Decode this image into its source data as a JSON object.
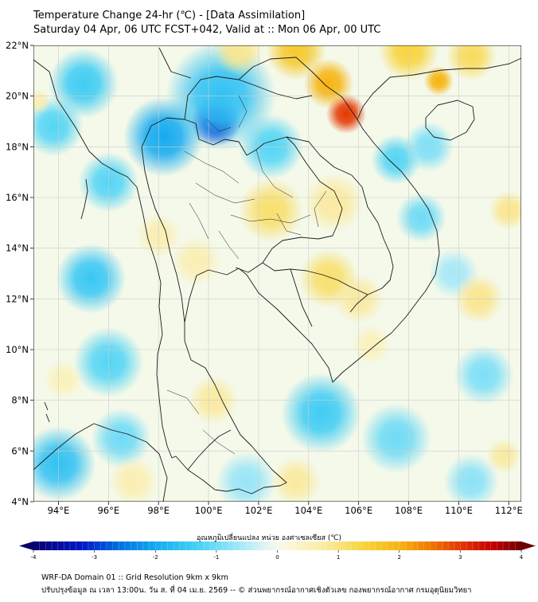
{
  "title": {
    "line1": "Temperature Change 24-hr (℃) - [Data Assimilation]",
    "line2": "Saturday 04 Apr, 06 UTC FCST+042, Valid at :: Mon 06 Apr, 00 UTC"
  },
  "map": {
    "lat_range": [
      4,
      22
    ],
    "lon_range": [
      93,
      112.5
    ],
    "lat_ticks": [
      "22°N",
      "20°N",
      "18°N",
      "16°N",
      "14°N",
      "12°N",
      "10°N",
      "8°N",
      "6°N",
      "4°N"
    ],
    "lon_ticks": [
      "94°E",
      "96°E",
      "98°E",
      "100°E",
      "102°E",
      "104°E",
      "106°E",
      "108°E",
      "110°E",
      "112°E"
    ],
    "background_color": "#f4f9ea",
    "anomalies": [
      {
        "lon": 100.3,
        "lat": 19.0,
        "value": -3.2,
        "spread": 1.0
      },
      {
        "lon": 98.2,
        "lat": 18.4,
        "value": -2.0,
        "spread": 1.6
      },
      {
        "lon": 100.5,
        "lat": 20.0,
        "value": -1.6,
        "spread": 2.2
      },
      {
        "lon": 102.5,
        "lat": 18.0,
        "value": -1.2,
        "spread": 1.3
      },
      {
        "lon": 95.0,
        "lat": 20.5,
        "value": -1.4,
        "spread": 1.4
      },
      {
        "lon": 93.8,
        "lat": 18.8,
        "value": -1.2,
        "spread": 1.2
      },
      {
        "lon": 96.0,
        "lat": 16.6,
        "value": -1.2,
        "spread": 1.2
      },
      {
        "lon": 95.3,
        "lat": 12.8,
        "value": -1.5,
        "spread": 1.4
      },
      {
        "lon": 96.0,
        "lat": 9.5,
        "value": -1.2,
        "spread": 1.4
      },
      {
        "lon": 94.0,
        "lat": 5.5,
        "value": -1.6,
        "spread": 1.5
      },
      {
        "lon": 96.5,
        "lat": 6.5,
        "value": -1.0,
        "spread": 1.2
      },
      {
        "lon": 107.5,
        "lat": 17.5,
        "value": -1.2,
        "spread": 1.0
      },
      {
        "lon": 108.5,
        "lat": 15.2,
        "value": -1.0,
        "spread": 1.0
      },
      {
        "lon": 108.8,
        "lat": 18.0,
        "value": -0.9,
        "spread": 1.0
      },
      {
        "lon": 109.8,
        "lat": 13.0,
        "value": -0.6,
        "spread": 1.0
      },
      {
        "lon": 104.5,
        "lat": 7.5,
        "value": -1.4,
        "spread": 1.6
      },
      {
        "lon": 107.5,
        "lat": 6.5,
        "value": -1.0,
        "spread": 1.4
      },
      {
        "lon": 111.0,
        "lat": 9.0,
        "value": -0.9,
        "spread": 1.2
      },
      {
        "lon": 110.5,
        "lat": 4.8,
        "value": -0.8,
        "spread": 1.1
      },
      {
        "lon": 101.5,
        "lat": 4.8,
        "value": -0.7,
        "spread": 1.2
      },
      {
        "lon": 105.5,
        "lat": 19.3,
        "value": 3.0,
        "spread": 0.8
      },
      {
        "lon": 104.8,
        "lat": 20.5,
        "value": 2.0,
        "spread": 1.0
      },
      {
        "lon": 103.5,
        "lat": 21.8,
        "value": 1.6,
        "spread": 1.2
      },
      {
        "lon": 108.0,
        "lat": 21.8,
        "value": 1.4,
        "spread": 1.2
      },
      {
        "lon": 109.2,
        "lat": 20.6,
        "value": 2.0,
        "spread": 0.6
      },
      {
        "lon": 110.5,
        "lat": 21.6,
        "value": 1.2,
        "spread": 1.0
      },
      {
        "lon": 101.2,
        "lat": 21.8,
        "value": 0.9,
        "spread": 1.0
      },
      {
        "lon": 102.5,
        "lat": 15.5,
        "value": 1.1,
        "spread": 1.3
      },
      {
        "lon": 105.0,
        "lat": 15.8,
        "value": 0.8,
        "spread": 1.2
      },
      {
        "lon": 104.8,
        "lat": 12.8,
        "value": 1.1,
        "spread": 1.2
      },
      {
        "lon": 106.0,
        "lat": 12.0,
        "value": 0.8,
        "spread": 1.0
      },
      {
        "lon": 99.5,
        "lat": 13.5,
        "value": 0.6,
        "spread": 1.0
      },
      {
        "lon": 110.8,
        "lat": 12.0,
        "value": 0.9,
        "spread": 1.0
      },
      {
        "lon": 112.0,
        "lat": 15.5,
        "value": 0.9,
        "spread": 0.8
      },
      {
        "lon": 100.2,
        "lat": 8.0,
        "value": 0.8,
        "spread": 1.0
      },
      {
        "lon": 103.5,
        "lat": 4.8,
        "value": 0.8,
        "spread": 1.0
      },
      {
        "lon": 97.0,
        "lat": 4.8,
        "value": 0.6,
        "spread": 1.0
      },
      {
        "lon": 111.8,
        "lat": 5.8,
        "value": 0.8,
        "spread": 0.7
      },
      {
        "lon": 98.0,
        "lat": 14.5,
        "value": 0.6,
        "spread": 0.9
      },
      {
        "lon": 94.2,
        "lat": 8.8,
        "value": 0.5,
        "spread": 0.8
      },
      {
        "lon": 106.5,
        "lat": 10.2,
        "value": 0.5,
        "spread": 0.8
      },
      {
        "lon": 93.2,
        "lat": 19.8,
        "value": 0.6,
        "spread": 0.5
      }
    ]
  },
  "colorbar": {
    "label": "อุณหภูมิเปลี่ยนแปลง หน่วย องศาเซลเซียส (℃)",
    "min": -4,
    "max": 4,
    "ticks": [
      "-4",
      "-3",
      "-2",
      "-1",
      "0",
      "1",
      "2",
      "3",
      "4"
    ],
    "stops": [
      {
        "v": -4.0,
        "c": "#08006e"
      },
      {
        "v": -3.2,
        "c": "#0018c8"
      },
      {
        "v": -2.6,
        "c": "#0070e0"
      },
      {
        "v": -2.0,
        "c": "#14aaf0"
      },
      {
        "v": -1.3,
        "c": "#46d2f5"
      },
      {
        "v": -0.6,
        "c": "#a6e8f8"
      },
      {
        "v": -0.15,
        "c": "#e6f6f4"
      },
      {
        "v": 0.0,
        "c": "#f4f9ea"
      },
      {
        "v": 0.25,
        "c": "#fbf6d2"
      },
      {
        "v": 0.8,
        "c": "#faeaa0"
      },
      {
        "v": 1.4,
        "c": "#f8d43c"
      },
      {
        "v": 2.0,
        "c": "#f6b410"
      },
      {
        "v": 2.5,
        "c": "#f07800"
      },
      {
        "v": 3.0,
        "c": "#e43800"
      },
      {
        "v": 3.5,
        "c": "#c80000"
      },
      {
        "v": 4.0,
        "c": "#6e0000"
      }
    ]
  },
  "footer": {
    "line1": "WRF-DA Domain 01 :: Grid Resolution 9km x 9km",
    "line2": "ปรับปรุงข้อมูล ณ เวลา 13:00น. วัน ส. ที่ 04 เม.ย. 2569 -- © ส่วนพยากรณ์อากาศเชิงตัวเลข กองพยากรณ์อากาศ กรมอุตุนิยมวิทยา"
  }
}
